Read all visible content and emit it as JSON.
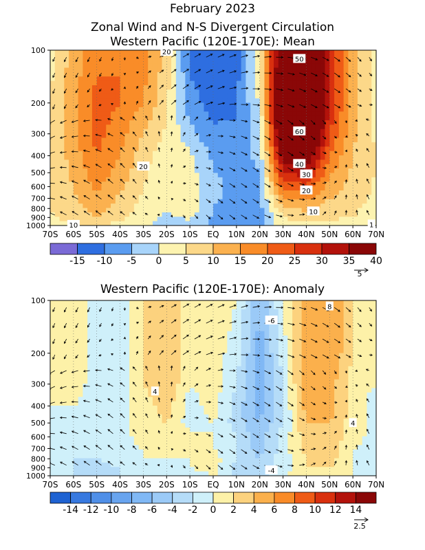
{
  "header": {
    "date": "February 2023",
    "line1": "Zonal Wind and N-S Divergent Circulation",
    "line2": "Western Pacific (120E-170E): Mean",
    "anomaly_title": "Western Pacific (120E-170E): Anomaly"
  },
  "chart_data": [
    {
      "type": "heatmap",
      "title": "Western Pacific (120E-170E): Mean",
      "x_ticks": [
        "70S",
        "60S",
        "50S",
        "40S",
        "30S",
        "20S",
        "10S",
        "EQ",
        "10N",
        "20N",
        "30N",
        "40N",
        "50N",
        "60N",
        "70N"
      ],
      "x_values": [
        -70,
        -60,
        -50,
        -40,
        -30,
        -20,
        -10,
        0,
        10,
        20,
        30,
        40,
        50,
        60,
        70
      ],
      "y_ticks": [
        "100",
        "200",
        "300",
        "400",
        "500",
        "600",
        "700",
        "800",
        "900",
        "1000"
      ],
      "y_values_hPa": [
        100,
        200,
        300,
        400,
        500,
        600,
        700,
        800,
        900,
        1000
      ],
      "y_scale": "log",
      "color_levels": [
        "-15",
        "-10",
        "-5",
        "0",
        "5",
        "10",
        "15",
        "20",
        "25",
        "30",
        "35",
        "40"
      ],
      "colors": [
        "#7a6ad6",
        "#2e6ee0",
        "#5a9cf0",
        "#a8d4fa",
        "#fdf3b0",
        "#fcd889",
        "#fbb14f",
        "#f98c28",
        "#ef5b16",
        "#d9300e",
        "#b3120b",
        "#8a0707"
      ],
      "contour_labels": [
        "20",
        "20",
        "10",
        "50",
        "60",
        "40",
        "30",
        "20",
        "10",
        "1"
      ],
      "vector_reference": "5",
      "zonal_wind_m_per_s": [
        {
          "lat": -70,
          "values": [
            3,
            5,
            6,
            6,
            6,
            6,
            6,
            5,
            4,
            2
          ]
        },
        {
          "lat": -60,
          "values": [
            12,
            14,
            14,
            12,
            11,
            10,
            9,
            8,
            7,
            4
          ]
        },
        {
          "lat": -50,
          "values": [
            18,
            22,
            22,
            20,
            18,
            16,
            14,
            12,
            10,
            6
          ]
        },
        {
          "lat": -40,
          "values": [
            20,
            20,
            17,
            15,
            13,
            11,
            9,
            8,
            6,
            3
          ]
        },
        {
          "lat": -30,
          "values": [
            18,
            15,
            10,
            7,
            6,
            5,
            4,
            3,
            2,
            1
          ]
        },
        {
          "lat": -20,
          "values": [
            8,
            6,
            4,
            2,
            1,
            1,
            1,
            0,
            -1,
            -2
          ]
        },
        {
          "lat": -10,
          "values": [
            -12,
            -8,
            -3,
            1,
            2,
            3,
            4,
            3,
            1,
            -2
          ]
        },
        {
          "lat": 0,
          "values": [
            -14,
            -12,
            -9,
            -6,
            -5,
            -4,
            -4,
            -5,
            -6,
            -6
          ]
        },
        {
          "lat": 10,
          "values": [
            -12,
            -11,
            -9,
            -7,
            -6,
            -6,
            -7,
            -8,
            -9,
            -8
          ]
        },
        {
          "lat": 20,
          "values": [
            5,
            1,
            -2,
            -4,
            -5,
            -5,
            -6,
            -7,
            -7,
            -6
          ]
        },
        {
          "lat": 30,
          "values": [
            45,
            55,
            50,
            40,
            30,
            22,
            15,
            9,
            5,
            2
          ]
        },
        {
          "lat": 40,
          "values": [
            50,
            60,
            55,
            42,
            32,
            24,
            17,
            11,
            7,
            3
          ]
        },
        {
          "lat": 50,
          "values": [
            30,
            30,
            25,
            20,
            16,
            13,
            10,
            8,
            6,
            3
          ]
        },
        {
          "lat": 60,
          "values": [
            12,
            12,
            11,
            10,
            9,
            8,
            7,
            6,
            5,
            2
          ]
        },
        {
          "lat": 70,
          "values": [
            3,
            4,
            4,
            5,
            5,
            4,
            4,
            3,
            2,
            0
          ]
        }
      ]
    },
    {
      "type": "heatmap",
      "title": "Western Pacific (120E-170E): Anomaly",
      "x_ticks": [
        "70S",
        "60S",
        "50S",
        "40S",
        "30S",
        "20S",
        "10S",
        "EQ",
        "10N",
        "20N",
        "30N",
        "40N",
        "50N",
        "60N",
        "70N"
      ],
      "x_values": [
        -70,
        -60,
        -50,
        -40,
        -30,
        -20,
        -10,
        0,
        10,
        20,
        30,
        40,
        50,
        60,
        70
      ],
      "y_ticks": [
        "100",
        "200",
        "300",
        "400",
        "500",
        "600",
        "700",
        "800",
        "900",
        "1000"
      ],
      "y_values_hPa": [
        100,
        200,
        300,
        400,
        500,
        600,
        700,
        800,
        900,
        1000
      ],
      "y_scale": "log",
      "color_levels": [
        "-14",
        "-12",
        "-10",
        "-8",
        "-6",
        "-4",
        "-2",
        "0",
        "2",
        "4",
        "6",
        "8",
        "10",
        "12",
        "14"
      ],
      "colors": [
        "#1e62d2",
        "#3779e0",
        "#4f8fe8",
        "#68a4ef",
        "#80b8f5",
        "#9bcaf7",
        "#b5dcf8",
        "#cff0fa",
        "#fdf1a8",
        "#fcd27e",
        "#fbb04c",
        "#f98b28",
        "#ef5b16",
        "#d9300e",
        "#b3120b",
        "#8a0707"
      ],
      "contour_labels": [
        "4",
        "4",
        "-6",
        "-4",
        "8"
      ],
      "vector_reference": "2.5",
      "zonal_wind_anomaly_m_per_s": [
        {
          "lat": -70,
          "values": [
            1,
            1,
            1,
            0,
            0,
            0,
            0,
            0,
            0,
            0
          ]
        },
        {
          "lat": -60,
          "values": [
            2,
            2,
            1,
            0,
            -1,
            -1,
            -1,
            -2,
            -2,
            -2
          ]
        },
        {
          "lat": -50,
          "values": [
            -2,
            -1,
            -1,
            -1,
            -2,
            -2,
            -2,
            -2,
            -3,
            -3
          ]
        },
        {
          "lat": -40,
          "values": [
            -1,
            -1,
            -1,
            -1,
            -1,
            -1,
            -1,
            -1,
            -2,
            -2
          ]
        },
        {
          "lat": -30,
          "values": [
            2,
            2,
            2,
            1,
            1,
            1,
            0,
            0,
            0,
            -1
          ]
        },
        {
          "lat": -20,
          "values": [
            3,
            4,
            4,
            3,
            2,
            2,
            1,
            0,
            -1,
            -2
          ]
        },
        {
          "lat": -10,
          "values": [
            1,
            1,
            0,
            -1,
            -1,
            1,
            1,
            0,
            0,
            -1
          ]
        },
        {
          "lat": 0,
          "values": [
            2,
            1,
            1,
            1,
            0,
            0,
            0,
            1,
            1,
            0
          ]
        },
        {
          "lat": 10,
          "values": [
            0,
            -1,
            -2,
            -3,
            -3,
            -2,
            -2,
            -2,
            -3,
            -2
          ]
        },
        {
          "lat": 20,
          "values": [
            -6,
            -7,
            -7,
            -7,
            -6,
            -5,
            -5,
            -4,
            -4,
            -3
          ]
        },
        {
          "lat": 30,
          "values": [
            0,
            -1,
            -2,
            -2,
            -2,
            -1,
            -1,
            -1,
            -1,
            0
          ]
        },
        {
          "lat": 40,
          "values": [
            5,
            6,
            6,
            5,
            4,
            3,
            3,
            2,
            2,
            1
          ]
        },
        {
          "lat": 50,
          "values": [
            6,
            6,
            5,
            5,
            4,
            4,
            3,
            3,
            2,
            1
          ]
        },
        {
          "lat": 60,
          "values": [
            2,
            2,
            1,
            1,
            1,
            1,
            0,
            0,
            0,
            0
          ]
        },
        {
          "lat": 70,
          "values": [
            0,
            0,
            0,
            -1,
            -1,
            -1,
            -1,
            -1,
            -1,
            0
          ]
        }
      ]
    }
  ]
}
